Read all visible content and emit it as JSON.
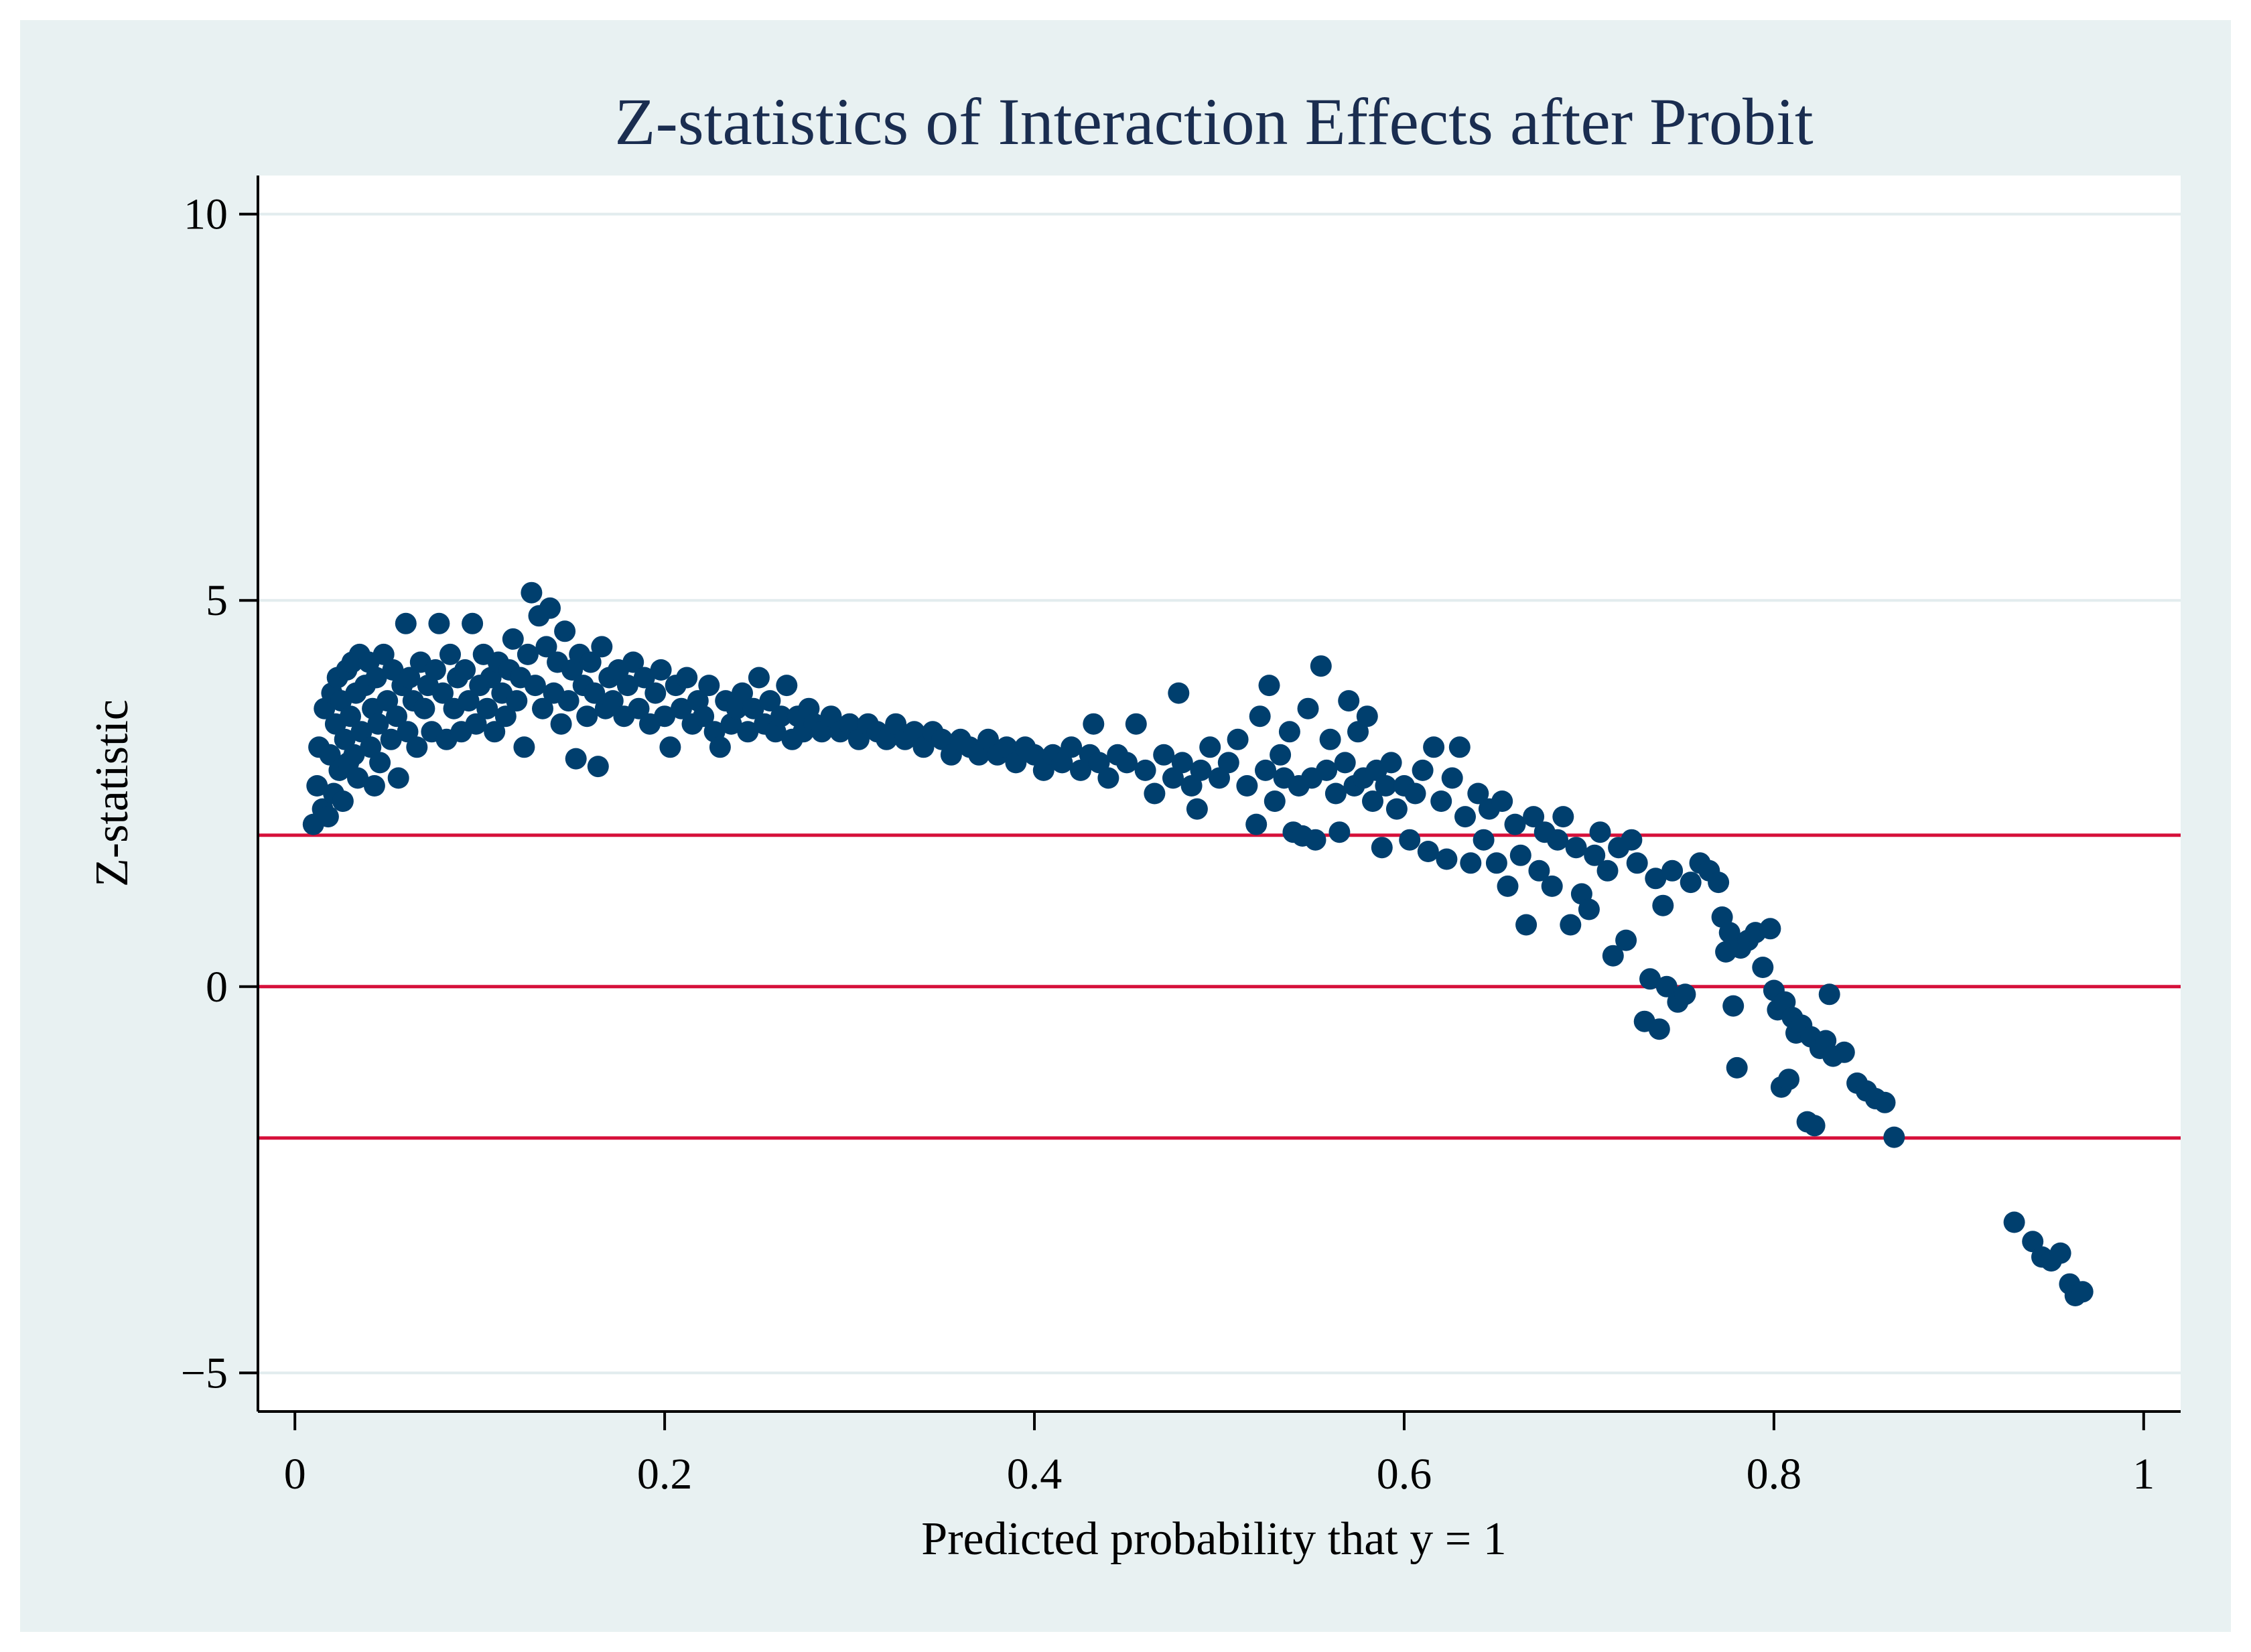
{
  "colors": {
    "page_background": "#ffffff",
    "outer_background": "#e8f1f2",
    "plot_background": "#ffffff",
    "title": "#1a2d50",
    "marker": "#003f6e",
    "reference_line": "#d6103a",
    "gridline": "#e2ecee",
    "axis": "#000000"
  },
  "chart_data": {
    "type": "scatter",
    "title": "Z-statistics of Interaction Effects after Probit",
    "xlabel": "Predicted probability that y = 1",
    "ylabel": "Z-statistic",
    "xlim": [
      -0.02,
      1.02
    ],
    "ylim": [
      -5.5,
      10.5
    ],
    "x_ticks": [
      0,
      0.2,
      0.4,
      0.6,
      0.8,
      1
    ],
    "x_tick_labels": [
      "0",
      "0.2",
      "0.4",
      "0.6",
      "0.8",
      "1"
    ],
    "y_ticks": [
      10,
      5,
      0,
      -5
    ],
    "y_tick_labels": [
      "10",
      "5",
      "0",
      "−5"
    ],
    "gridlines_y": [
      10,
      5,
      0,
      -5
    ],
    "reference_lines_y": [
      1.96,
      0,
      -1.96
    ],
    "series": [
      {
        "name": "Z-statistic",
        "marker": "circle",
        "points": [
          [
            0.01,
            2.1
          ],
          [
            0.012,
            2.6
          ],
          [
            0.013,
            3.1
          ],
          [
            0.015,
            2.3
          ],
          [
            0.016,
            3.6
          ],
          [
            0.018,
            2.2
          ],
          [
            0.019,
            3.0
          ],
          [
            0.02,
            3.8
          ],
          [
            0.021,
            2.5
          ],
          [
            0.022,
            3.4
          ],
          [
            0.023,
            4.0
          ],
          [
            0.024,
            2.8
          ],
          [
            0.025,
            3.7
          ],
          [
            0.026,
            2.4
          ],
          [
            0.027,
            3.2
          ],
          [
            0.028,
            4.1
          ],
          [
            0.029,
            2.9
          ],
          [
            0.03,
            3.5
          ],
          [
            0.031,
            4.2
          ],
          [
            0.032,
            3.0
          ],
          [
            0.033,
            3.8
          ],
          [
            0.034,
            2.7
          ],
          [
            0.035,
            4.3
          ],
          [
            0.036,
            3.3
          ],
          [
            0.038,
            3.9
          ],
          [
            0.04,
            4.2
          ],
          [
            0.041,
            3.1
          ],
          [
            0.042,
            3.6
          ],
          [
            0.043,
            2.6
          ],
          [
            0.044,
            4.0
          ],
          [
            0.045,
            3.4
          ],
          [
            0.046,
            2.9
          ],
          [
            0.048,
            4.3
          ],
          [
            0.05,
            3.7
          ],
          [
            0.052,
            3.2
          ],
          [
            0.053,
            4.1
          ],
          [
            0.055,
            3.5
          ],
          [
            0.056,
            2.7
          ],
          [
            0.058,
            3.9
          ],
          [
            0.06,
            4.7
          ],
          [
            0.061,
            3.3
          ],
          [
            0.062,
            4.0
          ],
          [
            0.064,
            3.7
          ],
          [
            0.066,
            3.1
          ],
          [
            0.068,
            4.2
          ],
          [
            0.07,
            3.6
          ],
          [
            0.072,
            3.9
          ],
          [
            0.074,
            3.3
          ],
          [
            0.076,
            4.1
          ],
          [
            0.078,
            4.7
          ],
          [
            0.08,
            3.8
          ],
          [
            0.082,
            3.2
          ],
          [
            0.084,
            4.3
          ],
          [
            0.086,
            3.6
          ],
          [
            0.088,
            4.0
          ],
          [
            0.09,
            3.3
          ],
          [
            0.092,
            4.1
          ],
          [
            0.094,
            3.7
          ],
          [
            0.096,
            4.7
          ],
          [
            0.098,
            3.4
          ],
          [
            0.1,
            3.9
          ],
          [
            0.102,
            4.3
          ],
          [
            0.104,
            3.6
          ],
          [
            0.106,
            4.0
          ],
          [
            0.108,
            3.3
          ],
          [
            0.11,
            4.2
          ],
          [
            0.112,
            3.8
          ],
          [
            0.114,
            3.5
          ],
          [
            0.116,
            4.1
          ],
          [
            0.118,
            4.5
          ],
          [
            0.12,
            3.7
          ],
          [
            0.122,
            4.0
          ],
          [
            0.124,
            3.1
          ],
          [
            0.126,
            4.3
          ],
          [
            0.128,
            5.1
          ],
          [
            0.13,
            3.9
          ],
          [
            0.132,
            4.8
          ],
          [
            0.134,
            3.6
          ],
          [
            0.136,
            4.4
          ],
          [
            0.138,
            4.9
          ],
          [
            0.14,
            3.8
          ],
          [
            0.142,
            4.2
          ],
          [
            0.144,
            3.4
          ],
          [
            0.146,
            4.6
          ],
          [
            0.148,
            3.7
          ],
          [
            0.15,
            4.1
          ],
          [
            0.152,
            2.95
          ],
          [
            0.154,
            4.3
          ],
          [
            0.156,
            3.9
          ],
          [
            0.158,
            3.5
          ],
          [
            0.16,
            4.2
          ],
          [
            0.162,
            3.8
          ],
          [
            0.164,
            2.85
          ],
          [
            0.166,
            4.4
          ],
          [
            0.168,
            3.6
          ],
          [
            0.17,
            4.0
          ],
          [
            0.172,
            3.7
          ],
          [
            0.175,
            4.1
          ],
          [
            0.178,
            3.5
          ],
          [
            0.18,
            3.9
          ],
          [
            0.183,
            4.2
          ],
          [
            0.186,
            3.6
          ],
          [
            0.189,
            4.0
          ],
          [
            0.192,
            3.4
          ],
          [
            0.195,
            3.8
          ],
          [
            0.198,
            4.1
          ],
          [
            0.2,
            3.5
          ],
          [
            0.203,
            3.1
          ],
          [
            0.206,
            3.9
          ],
          [
            0.209,
            3.6
          ],
          [
            0.212,
            4.0
          ],
          [
            0.215,
            3.4
          ],
          [
            0.218,
            3.7
          ],
          [
            0.221,
            3.5
          ],
          [
            0.224,
            3.9
          ],
          [
            0.227,
            3.3
          ],
          [
            0.23,
            3.1
          ],
          [
            0.233,
            3.7
          ],
          [
            0.236,
            3.4
          ],
          [
            0.239,
            3.6
          ],
          [
            0.242,
            3.8
          ],
          [
            0.245,
            3.3
          ],
          [
            0.248,
            3.6
          ],
          [
            0.251,
            4.0
          ],
          [
            0.254,
            3.4
          ],
          [
            0.257,
            3.7
          ],
          [
            0.26,
            3.3
          ],
          [
            0.263,
            3.5
          ],
          [
            0.266,
            3.9
          ],
          [
            0.269,
            3.2
          ],
          [
            0.272,
            3.5
          ],
          [
            0.275,
            3.3
          ],
          [
            0.278,
            3.6
          ],
          [
            0.281,
            3.4
          ],
          [
            0.285,
            3.3
          ],
          [
            0.29,
            3.5
          ],
          [
            0.295,
            3.3
          ],
          [
            0.3,
            3.4
          ],
          [
            0.305,
            3.2
          ],
          [
            0.31,
            3.4
          ],
          [
            0.315,
            3.3
          ],
          [
            0.32,
            3.2
          ],
          [
            0.325,
            3.4
          ],
          [
            0.33,
            3.2
          ],
          [
            0.335,
            3.3
          ],
          [
            0.34,
            3.1
          ],
          [
            0.345,
            3.3
          ],
          [
            0.35,
            3.2
          ],
          [
            0.355,
            3.0
          ],
          [
            0.36,
            3.2
          ],
          [
            0.365,
            3.1
          ],
          [
            0.37,
            3.0
          ],
          [
            0.375,
            3.2
          ],
          [
            0.38,
            3.0
          ],
          [
            0.385,
            3.1
          ],
          [
            0.39,
            2.9
          ],
          [
            0.395,
            3.1
          ],
          [
            0.4,
            3.0
          ],
          [
            0.405,
            2.8
          ],
          [
            0.41,
            3.0
          ],
          [
            0.415,
            2.9
          ],
          [
            0.42,
            3.1
          ],
          [
            0.425,
            2.8
          ],
          [
            0.43,
            3.0
          ],
          [
            0.432,
            3.4
          ],
          [
            0.435,
            2.9
          ],
          [
            0.44,
            2.7
          ],
          [
            0.445,
            3.0
          ],
          [
            0.45,
            2.9
          ],
          [
            0.455,
            3.4
          ],
          [
            0.46,
            2.8
          ],
          [
            0.465,
            2.5
          ],
          [
            0.47,
            3.0
          ],
          [
            0.475,
            2.7
          ],
          [
            0.478,
            3.8
          ],
          [
            0.48,
            2.9
          ],
          [
            0.485,
            2.6
          ],
          [
            0.488,
            2.3
          ],
          [
            0.49,
            2.8
          ],
          [
            0.495,
            3.1
          ],
          [
            0.5,
            2.7
          ],
          [
            0.505,
            2.9
          ],
          [
            0.51,
            3.2
          ],
          [
            0.515,
            2.6
          ],
          [
            0.52,
            2.1
          ],
          [
            0.522,
            3.5
          ],
          [
            0.525,
            2.8
          ],
          [
            0.527,
            3.9
          ],
          [
            0.53,
            2.4
          ],
          [
            0.533,
            3.0
          ],
          [
            0.535,
            2.7
          ],
          [
            0.538,
            3.3
          ],
          [
            0.54,
            2.0
          ],
          [
            0.543,
            2.6
          ],
          [
            0.545,
            1.95
          ],
          [
            0.548,
            3.6
          ],
          [
            0.55,
            2.7
          ],
          [
            0.552,
            1.9
          ],
          [
            0.555,
            4.15
          ],
          [
            0.558,
            2.8
          ],
          [
            0.56,
            3.2
          ],
          [
            0.563,
            2.5
          ],
          [
            0.565,
            2.0
          ],
          [
            0.568,
            2.9
          ],
          [
            0.57,
            3.7
          ],
          [
            0.573,
            2.6
          ],
          [
            0.575,
            3.3
          ],
          [
            0.578,
            2.7
          ],
          [
            0.58,
            3.5
          ],
          [
            0.583,
            2.4
          ],
          [
            0.585,
            2.8
          ],
          [
            0.588,
            1.8
          ],
          [
            0.59,
            2.6
          ],
          [
            0.593,
            2.9
          ],
          [
            0.596,
            2.3
          ],
          [
            0.6,
            2.6
          ],
          [
            0.603,
            1.9
          ],
          [
            0.606,
            2.5
          ],
          [
            0.61,
            2.8
          ],
          [
            0.613,
            1.75
          ],
          [
            0.616,
            3.1
          ],
          [
            0.62,
            2.4
          ],
          [
            0.623,
            1.65
          ],
          [
            0.626,
            2.7
          ],
          [
            0.63,
            3.1
          ],
          [
            0.633,
            2.2
          ],
          [
            0.636,
            1.6
          ],
          [
            0.64,
            2.5
          ],
          [
            0.643,
            1.9
          ],
          [
            0.646,
            2.3
          ],
          [
            0.65,
            1.6
          ],
          [
            0.653,
            2.4
          ],
          [
            0.656,
            1.3
          ],
          [
            0.66,
            2.1
          ],
          [
            0.663,
            1.7
          ],
          [
            0.666,
            0.8
          ],
          [
            0.67,
            2.2
          ],
          [
            0.673,
            1.5
          ],
          [
            0.676,
            2.0
          ],
          [
            0.68,
            1.3
          ],
          [
            0.683,
            1.9
          ],
          [
            0.686,
            2.2
          ],
          [
            0.69,
            0.8
          ],
          [
            0.693,
            1.8
          ],
          [
            0.696,
            1.2
          ],
          [
            0.7,
            1.0
          ],
          [
            0.703,
            1.7
          ],
          [
            0.706,
            2.0
          ],
          [
            0.71,
            1.5
          ],
          [
            0.713,
            0.4
          ],
          [
            0.716,
            1.8
          ],
          [
            0.72,
            0.6
          ],
          [
            0.723,
            1.9
          ],
          [
            0.726,
            1.6
          ],
          [
            0.73,
            -0.45
          ],
          [
            0.733,
            0.1
          ],
          [
            0.736,
            1.4
          ],
          [
            0.738,
            -0.55
          ],
          [
            0.74,
            1.05
          ],
          [
            0.742,
            0.0
          ],
          [
            0.745,
            1.5
          ],
          [
            0.748,
            -0.2
          ],
          [
            0.752,
            -0.1
          ],
          [
            0.755,
            1.35
          ],
          [
            0.76,
            1.6
          ],
          [
            0.765,
            1.5
          ],
          [
            0.77,
            1.35
          ],
          [
            0.772,
            0.9
          ],
          [
            0.774,
            0.45
          ],
          [
            0.776,
            0.7
          ],
          [
            0.778,
            -0.25
          ],
          [
            0.78,
            -1.05
          ],
          [
            0.782,
            0.5
          ],
          [
            0.786,
            0.6
          ],
          [
            0.79,
            0.7
          ],
          [
            0.794,
            0.25
          ],
          [
            0.798,
            0.75
          ],
          [
            0.8,
            -0.05
          ],
          [
            0.802,
            -0.3
          ],
          [
            0.804,
            -1.3
          ],
          [
            0.806,
            -0.2
          ],
          [
            0.808,
            -1.2
          ],
          [
            0.81,
            -0.4
          ],
          [
            0.812,
            -0.6
          ],
          [
            0.815,
            -0.5
          ],
          [
            0.818,
            -1.75
          ],
          [
            0.82,
            -0.65
          ],
          [
            0.822,
            -1.8
          ],
          [
            0.825,
            -0.8
          ],
          [
            0.828,
            -0.7
          ],
          [
            0.83,
            -0.1
          ],
          [
            0.832,
            -0.9
          ],
          [
            0.838,
            -0.85
          ],
          [
            0.845,
            -1.25
          ],
          [
            0.85,
            -1.35
          ],
          [
            0.855,
            -1.45
          ],
          [
            0.86,
            -1.5
          ],
          [
            0.865,
            -1.95
          ],
          [
            0.93,
            -3.05
          ],
          [
            0.94,
            -3.3
          ],
          [
            0.945,
            -3.5
          ],
          [
            0.95,
            -3.55
          ],
          [
            0.955,
            -3.45
          ],
          [
            0.96,
            -3.85
          ],
          [
            0.963,
            -4.0
          ],
          [
            0.967,
            -3.95
          ]
        ]
      }
    ]
  }
}
